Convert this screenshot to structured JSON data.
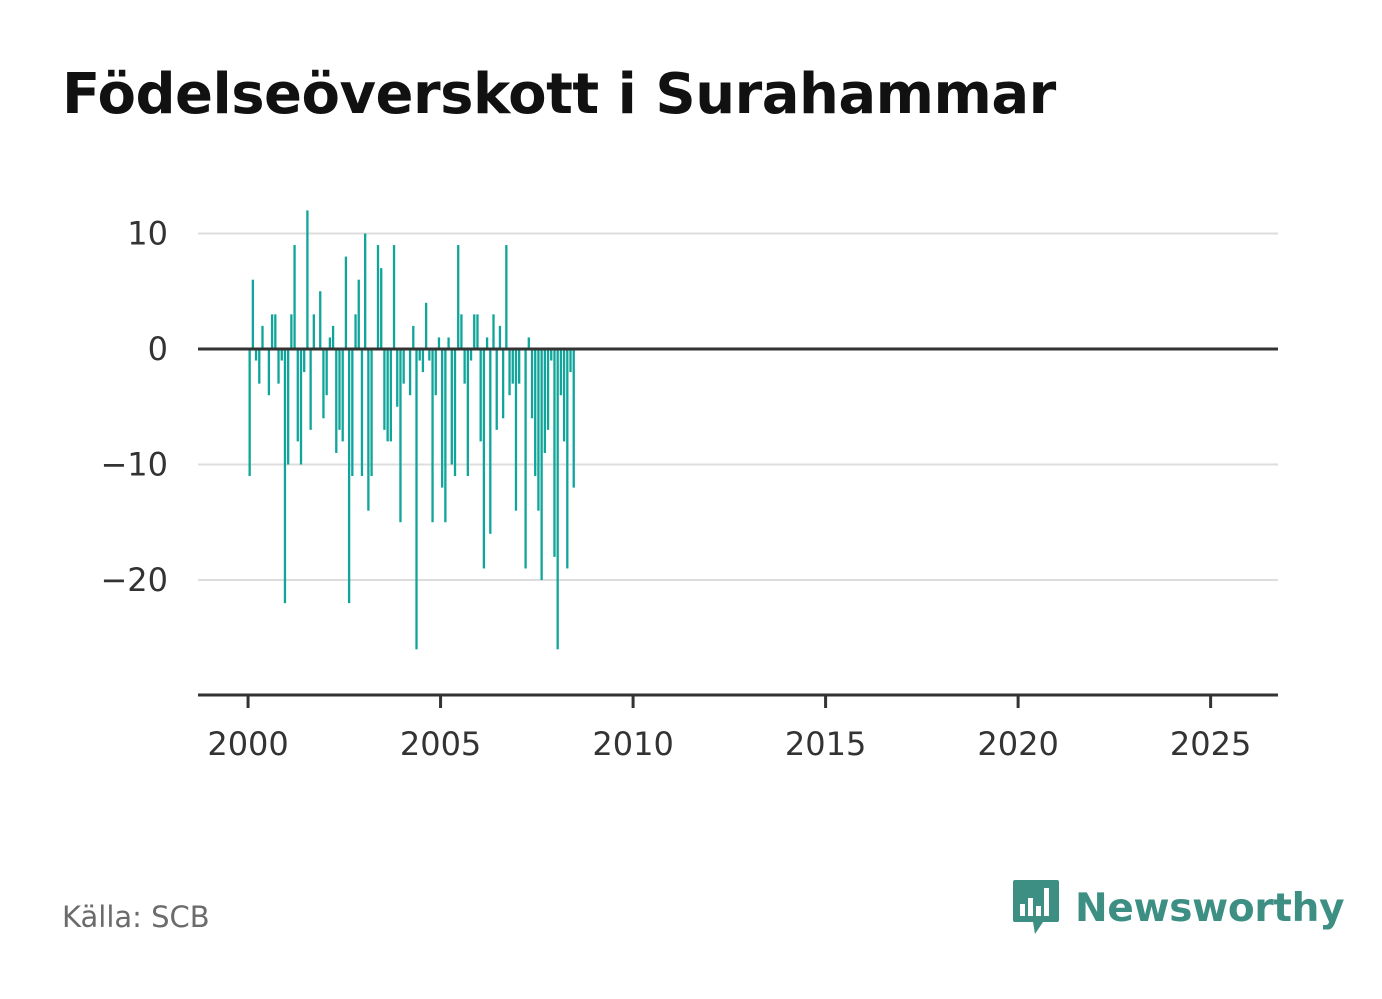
{
  "title": "Födelseöverskott i Surahammar",
  "source": "Källa: SCB",
  "brand": {
    "name": "Newsworthy",
    "icon": "newsworthy-logo-icon",
    "color": "#3d8f84"
  },
  "colors": {
    "bar": "#10a59a",
    "zero_line": "#333333",
    "grid": "#dddddd",
    "axis": "#333333"
  },
  "chart_data": {
    "type": "bar",
    "title": "Födelseöverskott i Surahammar",
    "xlabel": "",
    "ylabel": "",
    "grid": true,
    "x_ticks": [
      2000,
      2005,
      2010,
      2015,
      2020,
      2025
    ],
    "y_ticks": [
      10,
      0,
      -10,
      -20
    ],
    "y_tick_labels": [
      "10",
      "0",
      "−10",
      "−20"
    ],
    "xlim": [
      1998.7,
      2026.75
    ],
    "ylim": [
      -30,
      12
    ],
    "x_start": 2000,
    "values": [
      -11,
      6,
      -1,
      -3,
      2,
      0,
      -4,
      3,
      3,
      -3,
      -1,
      -22,
      -10,
      3,
      9,
      -8,
      -10,
      -2,
      12,
      -7,
      3,
      0,
      5,
      -6,
      -4,
      1,
      2,
      -9,
      -7,
      -8,
      8,
      -22,
      -11,
      3,
      6,
      -11,
      10,
      -14,
      -11,
      0,
      9,
      7,
      -7,
      -8,
      -8,
      9,
      -5,
      -15,
      -3,
      0,
      -4,
      2,
      -26,
      -1,
      -2,
      4,
      -1,
      -15,
      -4,
      1,
      -12,
      -15,
      1,
      -10,
      -11,
      9,
      3,
      -3,
      -11,
      -1,
      3,
      3,
      -8,
      -19,
      1,
      -16,
      3,
      -7,
      2,
      -6,
      9,
      -4,
      -3,
      -14,
      -3,
      0,
      -19,
      1,
      -6,
      -11,
      -14,
      -20,
      -9,
      -7,
      -1,
      -18,
      -26,
      -4,
      -8,
      -19,
      -2,
      -12
    ]
  }
}
